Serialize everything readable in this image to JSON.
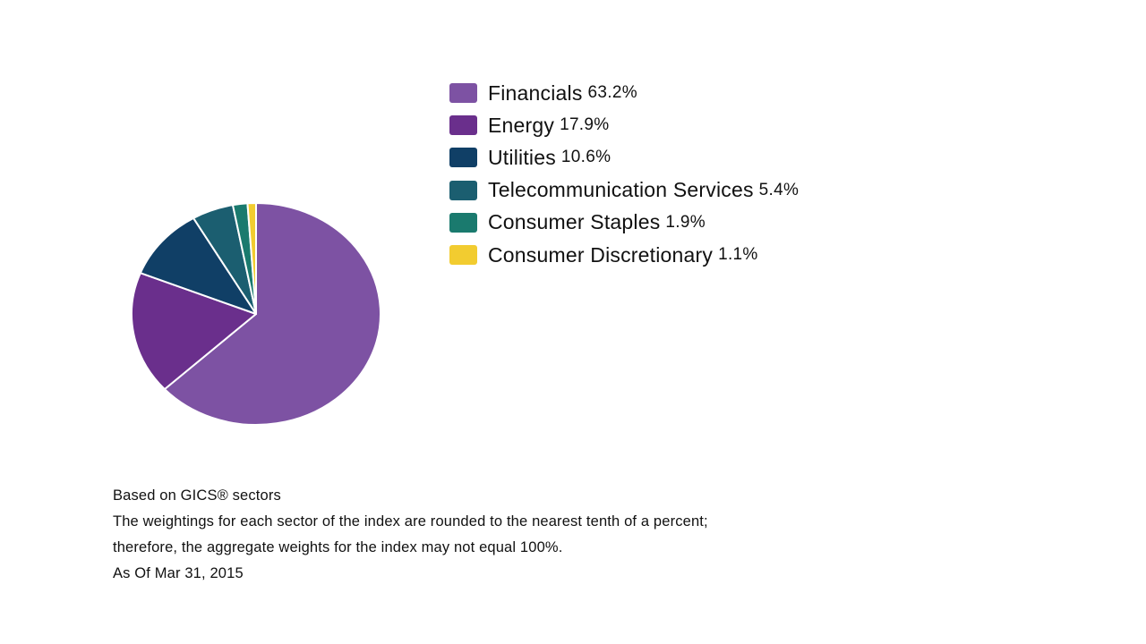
{
  "chart_data": {
    "type": "pie",
    "title": "",
    "categories": [
      "Financials",
      "Energy",
      "Utilities",
      "Telecommunication Services",
      "Consumer Staples",
      "Consumer Discretionary"
    ],
    "values": [
      63.2,
      17.9,
      10.6,
      5.4,
      1.9,
      1.1
    ],
    "value_labels": [
      "63.2%",
      "17.9%",
      "10.6%",
      "5.4%",
      "1.9%",
      "1.1%"
    ],
    "colors": [
      "#7d52a3",
      "#6a2f8c",
      "#103f66",
      "#1b5e70",
      "#1a7a6e",
      "#f2cc30"
    ],
    "legend_position": "right",
    "start_angle_deg": 0,
    "direction": "clockwise",
    "slice_border_color": "#ffffff"
  },
  "footnotes": {
    "line1": "Based on GICS® sectors",
    "line2": "The weightings for each sector of the index are rounded to the nearest tenth of a percent;",
    "line3": "therefore, the aggregate weights for the index may not equal 100%.",
    "line4": "As Of Mar 31, 2015"
  }
}
